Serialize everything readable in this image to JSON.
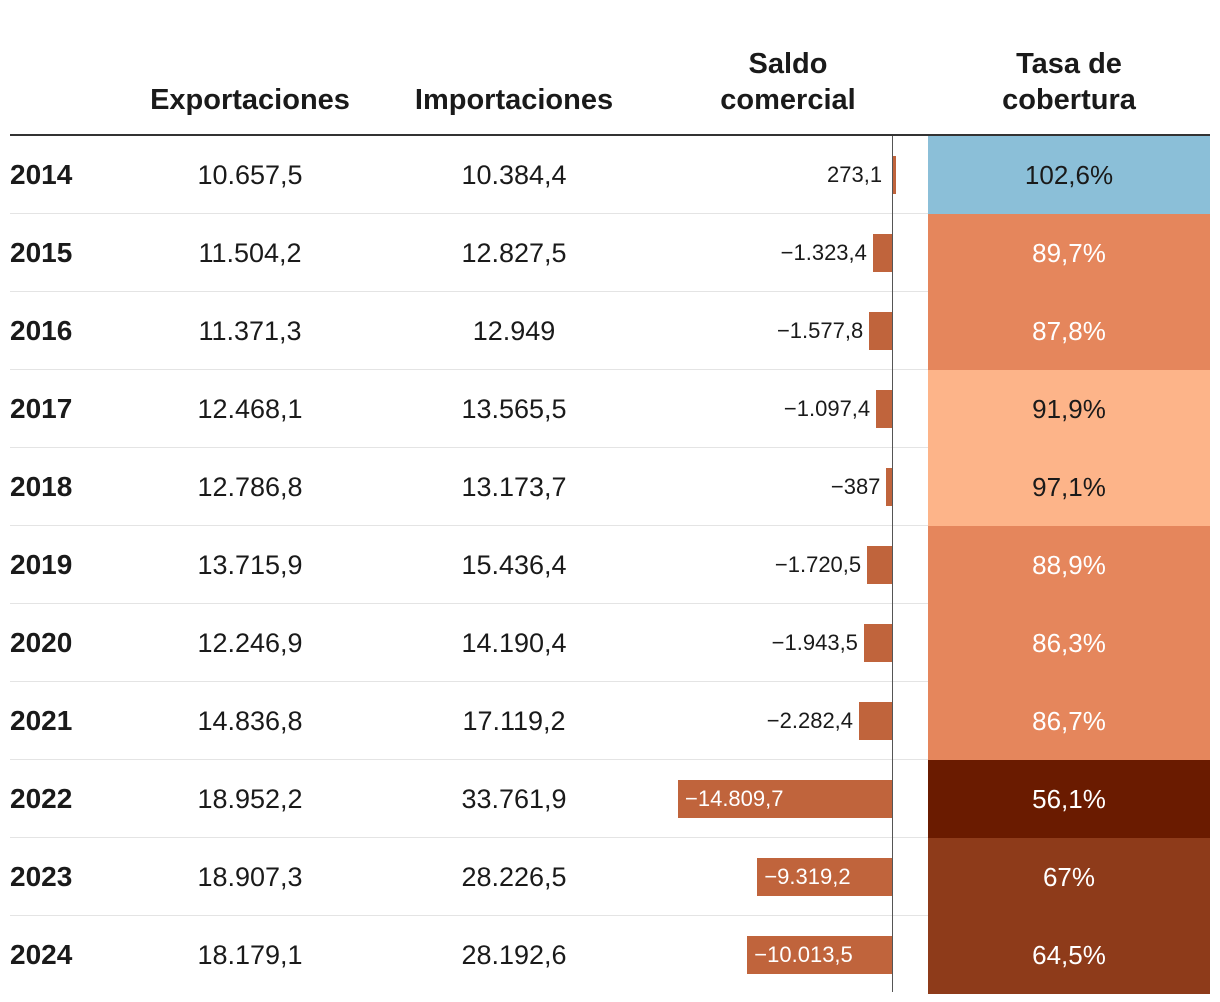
{
  "chart_data": {
    "type": "table",
    "columns": [
      "Exportaciones",
      "Importaciones",
      "Saldo comercial",
      "Tasa de cobertura"
    ],
    "header": {
      "exportaciones": "Exportaciones",
      "importaciones": "Importaciones",
      "saldo_line1": "Saldo",
      "saldo_line2": "comercial",
      "tasa_line1": "Tasa de",
      "tasa_line2": "cobertura"
    },
    "rows": [
      {
        "year": "2014",
        "exp": "10.657,5",
        "imp": "10.384,4",
        "saldo": 273.1,
        "saldo_label": "273,1",
        "tasa": 102.6,
        "tasa_label": "102,6%"
      },
      {
        "year": "2015",
        "exp": "11.504,2",
        "imp": "12.827,5",
        "saldo": -1323.4,
        "saldo_label": "−1.323,4",
        "tasa": 89.7,
        "tasa_label": "89,7%"
      },
      {
        "year": "2016",
        "exp": "11.371,3",
        "imp": "12.949",
        "saldo": -1577.8,
        "saldo_label": "−1.577,8",
        "tasa": 87.8,
        "tasa_label": "87,8%"
      },
      {
        "year": "2017",
        "exp": "12.468,1",
        "imp": "13.565,5",
        "saldo": -1097.4,
        "saldo_label": "−1.097,4",
        "tasa": 91.9,
        "tasa_label": "91,9%"
      },
      {
        "year": "2018",
        "exp": "12.786,8",
        "imp": "13.173,7",
        "saldo": -387,
        "saldo_label": "−387",
        "tasa": 97.1,
        "tasa_label": "97,1%"
      },
      {
        "year": "2019",
        "exp": "13.715,9",
        "imp": "15.436,4",
        "saldo": -1720.5,
        "saldo_label": "−1.720,5",
        "tasa": 88.9,
        "tasa_label": "88,9%"
      },
      {
        "year": "2020",
        "exp": "12.246,9",
        "imp": "14.190,4",
        "saldo": -1943.5,
        "saldo_label": "−1.943,5",
        "tasa": 86.3,
        "tasa_label": "86,3%"
      },
      {
        "year": "2021",
        "exp": "14.836,8",
        "imp": "17.119,2",
        "saldo": -2282.4,
        "saldo_label": "−2.282,4",
        "tasa": 86.7,
        "tasa_label": "86,7%"
      },
      {
        "year": "2022",
        "exp": "18.952,2",
        "imp": "33.761,9",
        "saldo": -14809.7,
        "saldo_label": "−14.809,7",
        "tasa": 56.1,
        "tasa_label": "56,1%"
      },
      {
        "year": "2023",
        "exp": "18.907,3",
        "imp": "28.226,5",
        "saldo": -9319.2,
        "saldo_label": "−9.319,2",
        "tasa": 67,
        "tasa_label": "67%"
      },
      {
        "year": "2024",
        "exp": "18.179,1",
        "imp": "28.192,6",
        "saldo": -10013.5,
        "saldo_label": "−10.013,5",
        "tasa": 64.5,
        "tasa_label": "64,5%"
      }
    ],
    "saldo_max_abs": 14809.7
  },
  "colors": {
    "bar": "#c0643c",
    "text_dark": "#1a1a1a",
    "text_light": "#ffffff",
    "tasa_above_100": "#8bbfd8",
    "tasa_90_100": "#fdb489",
    "tasa_80_90": "#e5865c",
    "tasa_60_80": "#8e3b1a",
    "tasa_below_60": "#6a1b00"
  }
}
